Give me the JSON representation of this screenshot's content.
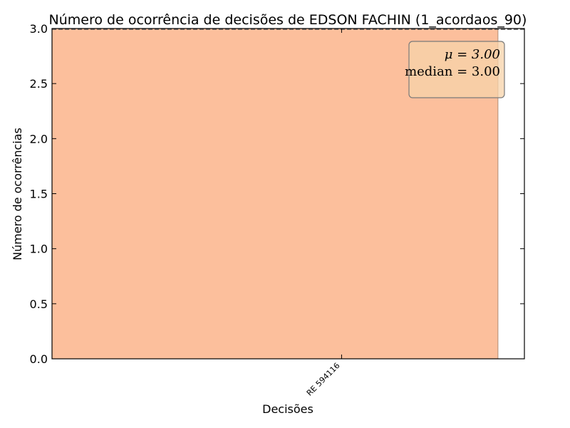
{
  "chart_data": {
    "type": "bar",
    "title": "Número de ocorrência de decisões de EDSON FACHIN (1_acordaos_90)",
    "xlabel": "Decisões",
    "ylabel": "Número de ocorrências",
    "categories": [
      "RE 594116"
    ],
    "values": [
      3
    ],
    "ylim": [
      0,
      3.0
    ],
    "yticks": [
      "0.0",
      "0.5",
      "1.0",
      "1.5",
      "2.0",
      "2.5",
      "3.0"
    ],
    "grid": false,
    "bar_color": "#fcbf9c",
    "bar_edge_color": "#b08a74",
    "mean_line_color": "#555555",
    "stats_box": {
      "mean_text": "μ = 3.00",
      "median_text": "median = 3.00",
      "background": "#f7d3a9",
      "border": "#7a7a7a"
    }
  }
}
